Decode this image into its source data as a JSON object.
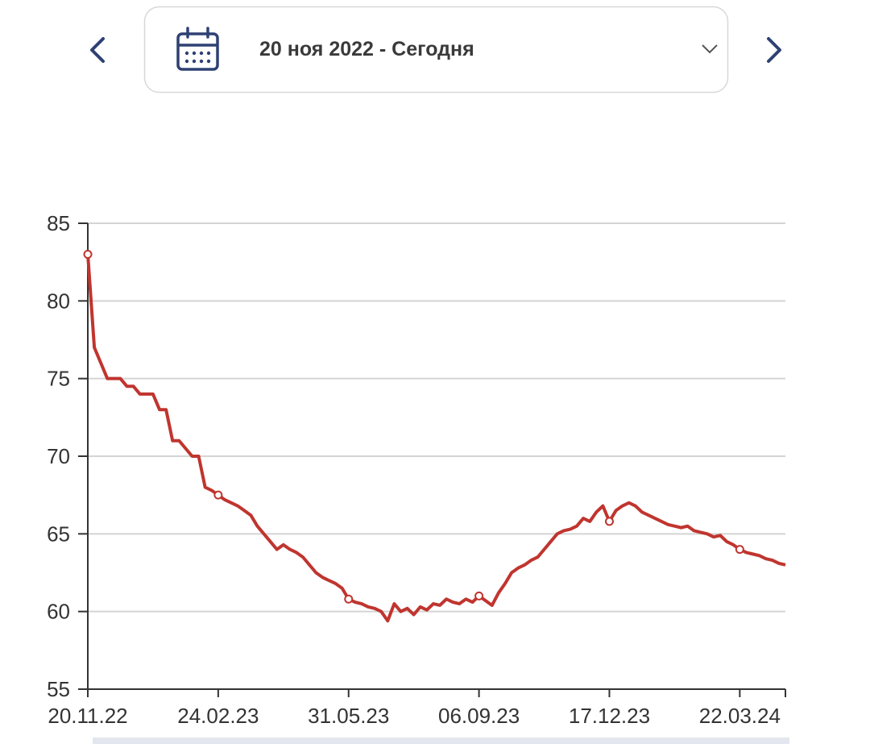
{
  "header": {
    "date_range": "20 ноя 2022 - Сегодня"
  },
  "chart_data": {
    "type": "line",
    "categories": [
      "20.11.22",
      null,
      null,
      null,
      null,
      null,
      null,
      null,
      null,
      null,
      null,
      null,
      null,
      null,
      null,
      null,
      null,
      null,
      null,
      null,
      "24.02.23",
      null,
      null,
      null,
      null,
      null,
      null,
      null,
      null,
      null,
      null,
      null,
      null,
      null,
      null,
      null,
      null,
      null,
      null,
      null,
      "31.05.23",
      null,
      null,
      null,
      null,
      null,
      null,
      null,
      null,
      null,
      null,
      null,
      null,
      null,
      null,
      null,
      null,
      null,
      null,
      null,
      "06.09.23",
      null,
      null,
      null,
      null,
      null,
      null,
      null,
      null,
      null,
      null,
      null,
      null,
      null,
      null,
      null,
      null,
      null,
      null,
      null,
      "17.12.23",
      null,
      null,
      null,
      null,
      null,
      null,
      null,
      null,
      null,
      null,
      null,
      null,
      null,
      null,
      null,
      null,
      null,
      null,
      null,
      "22.03.24",
      null,
      null,
      null,
      null,
      null,
      null,
      null
    ],
    "values": [
      83,
      77,
      76,
      75,
      75,
      75,
      74.5,
      74.5,
      74,
      74,
      74,
      73,
      73,
      71,
      71,
      70.5,
      70,
      70,
      68,
      67.8,
      67.5,
      67.2,
      67,
      66.8,
      66.5,
      66.2,
      65.5,
      65,
      64.5,
      64,
      64.3,
      64,
      63.8,
      63.5,
      63,
      62.5,
      62.2,
      62,
      61.8,
      61.5,
      60.8,
      60.6,
      60.5,
      60.3,
      60.2,
      60,
      59.4,
      60.5,
      60,
      60.2,
      59.8,
      60.3,
      60.1,
      60.5,
      60.4,
      60.8,
      60.6,
      60.5,
      60.8,
      60.6,
      61,
      60.7,
      60.4,
      61.2,
      61.8,
      62.5,
      62.8,
      63,
      63.3,
      63.5,
      64,
      64.5,
      65,
      65.2,
      65.3,
      65.5,
      66,
      65.8,
      66.4,
      66.8,
      65.8,
      66.5,
      66.8,
      67,
      66.8,
      66.4,
      66.2,
      66,
      65.8,
      65.6,
      65.5,
      65.4,
      65.5,
      65.2,
      65.1,
      65,
      64.8,
      64.9,
      64.5,
      64.3,
      64,
      63.8,
      63.7,
      63.6,
      63.4,
      63.3,
      63.1,
      63
    ],
    "color": "#c0352f",
    "ylim": [
      55,
      85
    ],
    "yticks": [
      55,
      60,
      65,
      70,
      75,
      80,
      85
    ],
    "grid": true
  }
}
